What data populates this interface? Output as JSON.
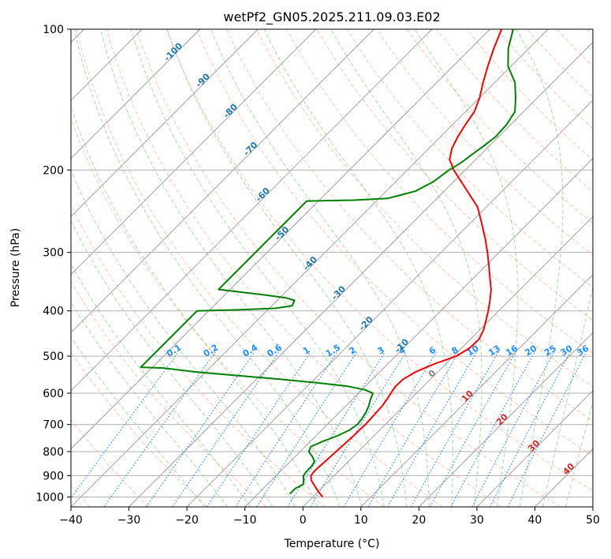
{
  "chart_data": {
    "type": "skew-t",
    "title": "wetPf2_GN05.2025.211.09.03.E02",
    "xlabel": "Temperature (°C)",
    "ylabel": "Pressure (hPa)",
    "xlim": [
      -40,
      50
    ],
    "ylim": [
      1050,
      100
    ],
    "x_ticks": [
      "−40",
      "−30",
      "−20",
      "−10",
      "0",
      "10",
      "20",
      "30",
      "40",
      "50"
    ],
    "x_tick_values": [
      -40,
      -30,
      -20,
      -10,
      0,
      10,
      20,
      30,
      40,
      50
    ],
    "y_ticks": [
      "1000",
      "900",
      "800",
      "700",
      "600",
      "500",
      "400",
      "300",
      "200",
      "100"
    ],
    "y_tick_values": [
      1000,
      900,
      800,
      700,
      600,
      500,
      400,
      300,
      200,
      100
    ],
    "grid": true,
    "colors": {
      "temperature": "#ff0000",
      "dewpoint": "#008000",
      "isotherm": "#999999",
      "dry_adiabat": "#ff7f50",
      "moist_adiabat": "#2ca02c",
      "mixing_ratio": "#1e90ff",
      "adiabat_label": "#1f77b4",
      "moist_label": "#d62728"
    },
    "series": [
      {
        "key": "temperature",
        "points": [
          [
            1.7,
            1000
          ],
          [
            0.4,
            980
          ],
          [
            -0.8,
            960
          ],
          [
            -2.0,
            940
          ],
          [
            -3.2,
            920
          ],
          [
            -4.0,
            900
          ],
          [
            -4.2,
            880
          ],
          [
            -4.1,
            860
          ],
          [
            -4.0,
            840
          ],
          [
            -3.9,
            820
          ],
          [
            -3.8,
            800
          ],
          [
            -3.7,
            780
          ],
          [
            -3.6,
            760
          ],
          [
            -3.5,
            740
          ],
          [
            -3.5,
            720
          ],
          [
            -3.4,
            700
          ],
          [
            -3.5,
            680
          ],
          [
            -3.6,
            660
          ],
          [
            -3.7,
            640
          ],
          [
            -4.0,
            620
          ],
          [
            -4.4,
            600
          ],
          [
            -4.8,
            580
          ],
          [
            -4.7,
            560
          ],
          [
            -3.8,
            540
          ],
          [
            -2.0,
            520
          ],
          [
            0.5,
            500
          ],
          [
            1.4,
            480
          ],
          [
            1.5,
            460
          ],
          [
            0.7,
            440
          ],
          [
            -0.5,
            420
          ],
          [
            -1.8,
            400
          ],
          [
            -3.3,
            380
          ],
          [
            -5.0,
            360
          ],
          [
            -7.2,
            340
          ],
          [
            -9.5,
            320
          ],
          [
            -12.0,
            300
          ],
          [
            -14.8,
            280
          ],
          [
            -18.0,
            260
          ],
          [
            -21.5,
            240
          ],
          [
            -26.5,
            220
          ],
          [
            -32.0,
            200
          ],
          [
            -34.5,
            190
          ],
          [
            -36.0,
            180
          ],
          [
            -37.0,
            170
          ],
          [
            -37.8,
            160
          ],
          [
            -38.5,
            150
          ],
          [
            -40.0,
            140
          ],
          [
            -42.0,
            130
          ],
          [
            -44.0,
            120
          ],
          [
            -46.0,
            110
          ],
          [
            -48.0,
            100
          ]
        ]
      },
      {
        "key": "dewpoint",
        "points": [
          [
            -4.5,
            985
          ],
          [
            -4.5,
            960
          ],
          [
            -3.8,
            940
          ],
          [
            -4.5,
            920
          ],
          [
            -5.3,
            900
          ],
          [
            -5.5,
            880
          ],
          [
            -5.5,
            860
          ],
          [
            -5.8,
            840
          ],
          [
            -7.0,
            820
          ],
          [
            -8.5,
            800
          ],
          [
            -9.0,
            780
          ],
          [
            -7.8,
            760
          ],
          [
            -6.3,
            740
          ],
          [
            -5.2,
            720
          ],
          [
            -4.8,
            700
          ],
          [
            -5.0,
            680
          ],
          [
            -5.4,
            660
          ],
          [
            -6.0,
            640
          ],
          [
            -6.8,
            620
          ],
          [
            -7.5,
            600
          ],
          [
            -9.5,
            590
          ],
          [
            -13.0,
            580
          ],
          [
            -19.0,
            570
          ],
          [
            -26.0,
            560
          ],
          [
            -34.0,
            550
          ],
          [
            -42.0,
            540
          ],
          [
            -48.0,
            530
          ],
          [
            -52.0,
            528
          ],
          [
            -52.0,
            400
          ],
          [
            -45.0,
            398
          ],
          [
            -39.0,
            395
          ],
          [
            -36.5,
            390
          ],
          [
            -37.0,
            380
          ],
          [
            -39.0,
            375
          ],
          [
            -43.0,
            370
          ],
          [
            -52.0,
            360
          ],
          [
            -52.0,
            233
          ],
          [
            -44.0,
            232
          ],
          [
            -38.5,
            230
          ],
          [
            -35.0,
            222
          ],
          [
            -33.5,
            212
          ],
          [
            -32.8,
            200
          ],
          [
            -32.0,
            193
          ],
          [
            -31.5,
            185
          ],
          [
            -31.0,
            178
          ],
          [
            -30.5,
            170
          ],
          [
            -30.7,
            160
          ],
          [
            -31.5,
            150
          ],
          [
            -33.8,
            140
          ],
          [
            -36.5,
            130
          ],
          [
            -40.5,
            120
          ],
          [
            -43.5,
            110
          ],
          [
            -46.0,
            100
          ]
        ]
      }
    ],
    "dry_adiabat_labels": [
      "-100",
      "-90",
      "-80",
      "-70",
      "-60",
      "-50",
      "-40",
      "-30",
      "-20",
      "-10"
    ],
    "moist_adiabat_labels": [
      "0",
      "10",
      "20",
      "30",
      "40"
    ],
    "mixing_ratio_labels": [
      "0.1",
      "0.2",
      "0.4",
      "0.6",
      "1",
      "1.5",
      "2",
      "3",
      "4",
      "6",
      "8",
      "10",
      "13",
      "16",
      "20",
      "25",
      "30",
      "36"
    ]
  }
}
